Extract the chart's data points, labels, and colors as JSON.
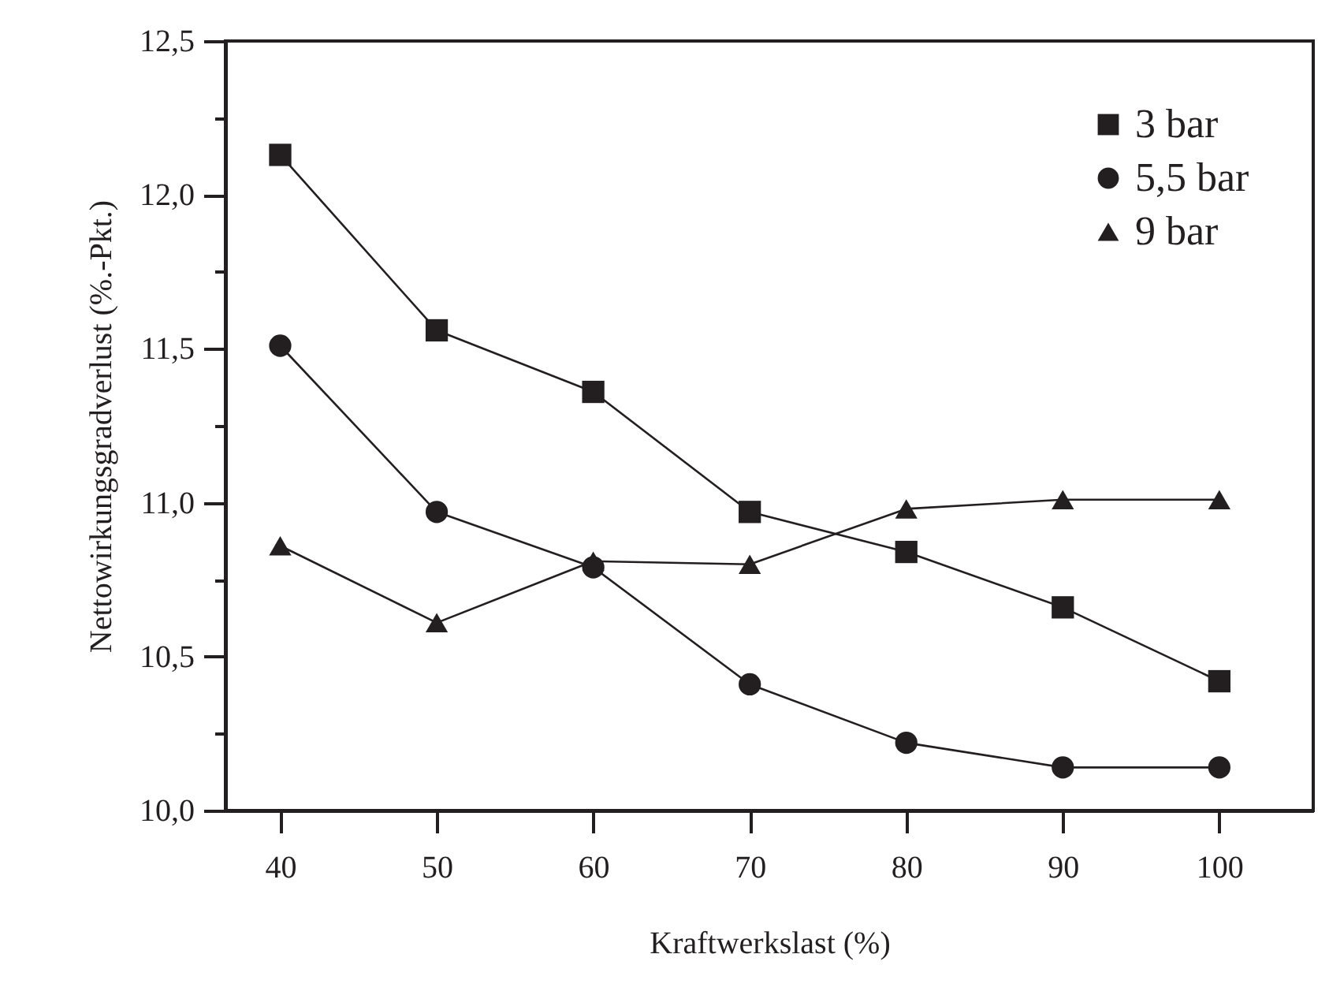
{
  "chart_data": {
    "type": "line",
    "xlabel": "Kraftwerkslast (%)",
    "ylabel": "Nettowirkungsgradverlust  (%.-Pkt.)",
    "x": [
      40,
      50,
      60,
      70,
      80,
      90,
      100
    ],
    "series": [
      {
        "name": "3 bar",
        "color": "#231f20",
        "marker": "square",
        "values": [
          12.13,
          11.56,
          11.36,
          10.97,
          10.84,
          10.66,
          10.42
        ]
      },
      {
        "name": "5,5 bar",
        "color": "#231f20",
        "marker": "circle",
        "values": [
          11.51,
          10.97,
          10.79,
          10.41,
          10.22,
          10.14,
          10.14
        ]
      },
      {
        "name": "9 bar",
        "color": "#231f20",
        "marker": "triangle",
        "values": [
          10.86,
          10.61,
          10.81,
          10.8,
          10.98,
          11.01,
          11.01
        ]
      }
    ],
    "xlim": [
      36.5,
      106
    ],
    "xticks": [
      40,
      50,
      60,
      70,
      80,
      90,
      100
    ],
    "ylim": [
      10.0,
      12.5
    ],
    "yticks": [
      {
        "value": 10.0,
        "label": "10,0"
      },
      {
        "value": 10.25,
        "label": null
      },
      {
        "value": 10.5,
        "label": "10,5"
      },
      {
        "value": 10.75,
        "label": null
      },
      {
        "value": 11.0,
        "label": "11,0"
      },
      {
        "value": 11.25,
        "label": null
      },
      {
        "value": 11.5,
        "label": "11,5"
      },
      {
        "value": 11.75,
        "label": null
      },
      {
        "value": 12.0,
        "label": "12,0"
      },
      {
        "value": 12.25,
        "label": null
      },
      {
        "value": 12.5,
        "label": "12,5"
      }
    ],
    "grid": false,
    "legend": "top right",
    "line_style": "solid"
  }
}
